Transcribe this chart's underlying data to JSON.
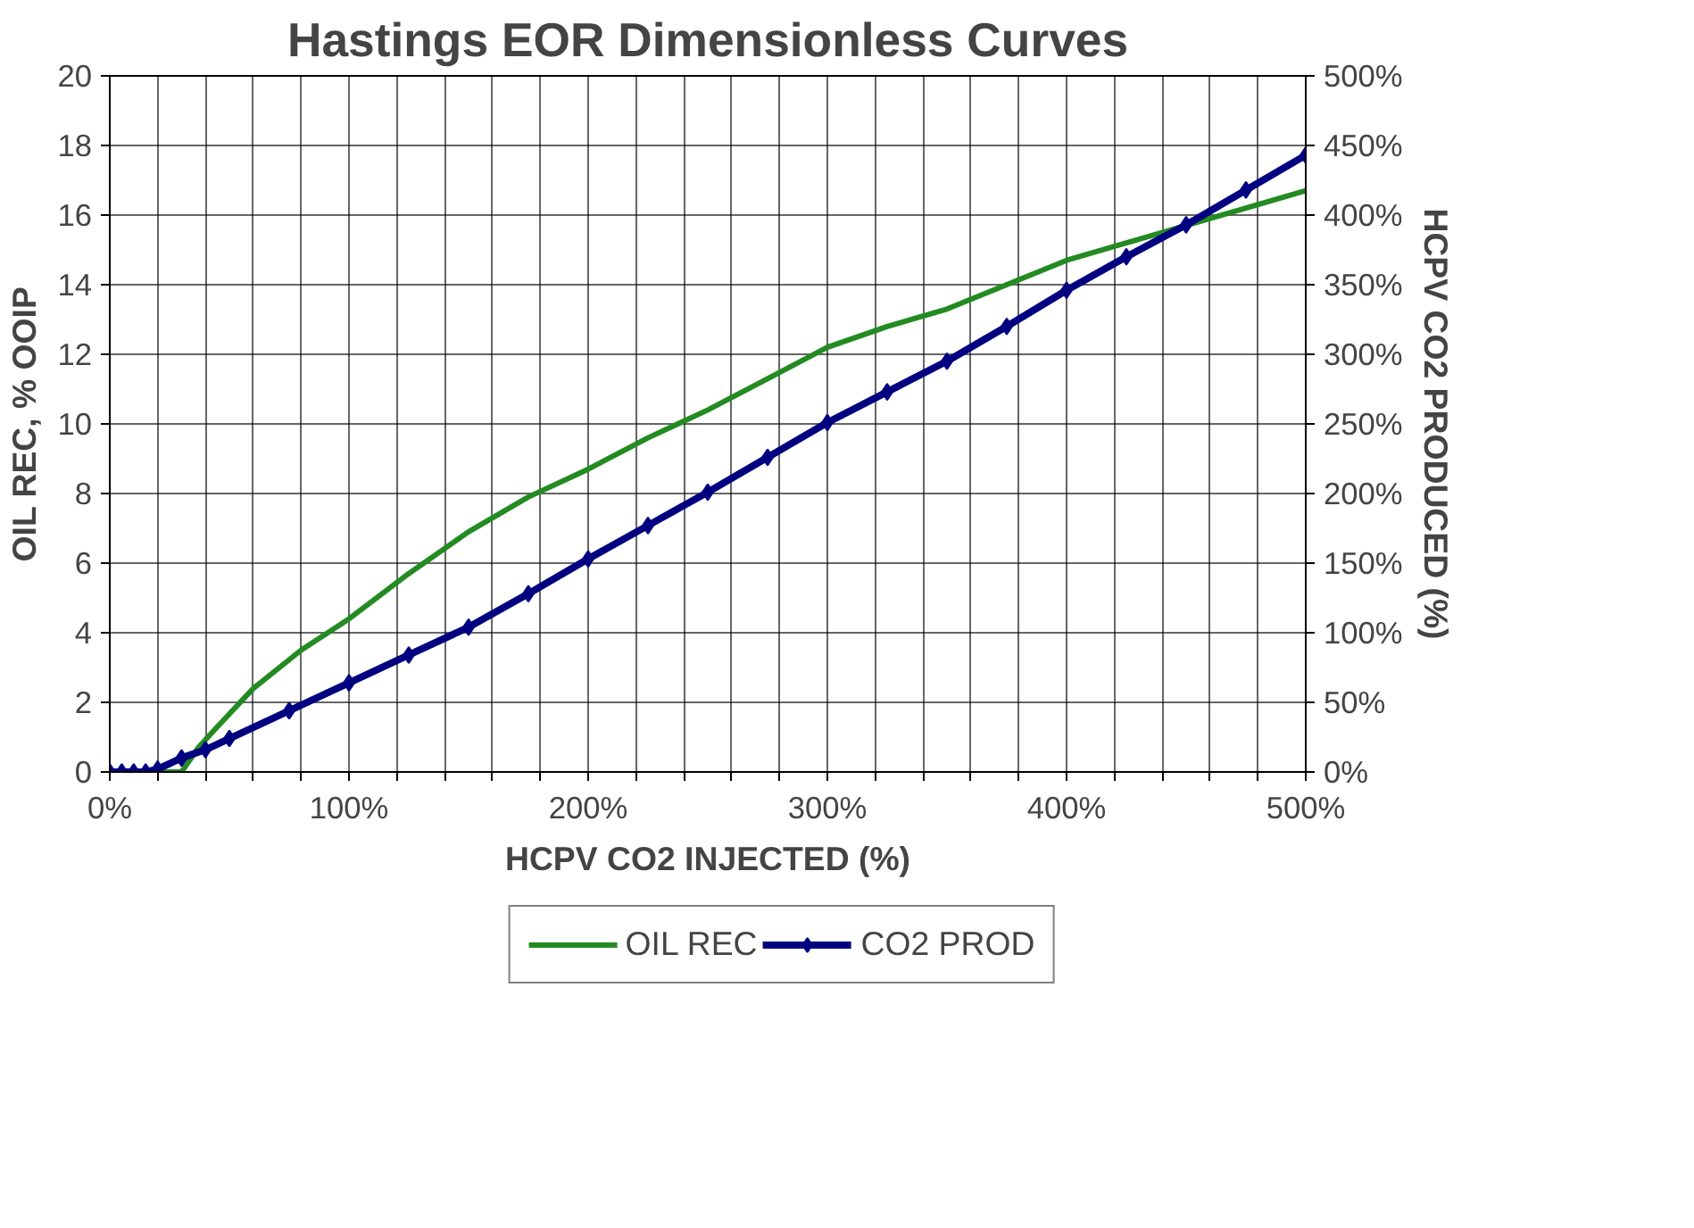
{
  "chart_data": {
    "type": "line",
    "title": "Hastings EOR Dimensionless Curves",
    "xlabel": "HCPV CO2 INJECTED (%)",
    "ylabel": "OIL REC, % OOIP",
    "y2label": "HCPV CO2 PRODUCED (%)",
    "series": [
      {
        "name": "OIL REC",
        "color": "#238b21",
        "marker": "none",
        "x": [
          0,
          10,
          20,
          30,
          37,
          45,
          60,
          80,
          100,
          125,
          150,
          175,
          200,
          225,
          250,
          275,
          300,
          325,
          350,
          375,
          400,
          425,
          450,
          475,
          500
        ],
        "values": [
          0,
          0,
          0,
          0,
          0.7,
          1.3,
          2.4,
          3.5,
          4.4,
          5.7,
          6.9,
          7.9,
          8.7,
          9.6,
          10.4,
          11.3,
          12.2,
          12.8,
          13.3,
          14.0,
          14.7,
          15.2,
          15.7,
          16.2,
          16.7
        ]
      },
      {
        "name": "CO2 PROD",
        "color": "#000080",
        "marker": "diamond",
        "axis": "y2",
        "x": [
          0,
          5,
          10,
          15,
          20,
          30,
          40,
          50,
          75,
          100,
          125,
          150,
          175,
          200,
          225,
          250,
          275,
          300,
          325,
          350,
          375,
          400,
          425,
          450,
          475,
          500
        ],
        "values": [
          0,
          0,
          0,
          0,
          2,
          10,
          16,
          24,
          44,
          64,
          84,
          104,
          128,
          153,
          177,
          201,
          226,
          251,
          273,
          295,
          320,
          346,
          370,
          393,
          418,
          443
        ]
      }
    ],
    "xlim": [
      0,
      500
    ],
    "xticks": [
      {
        "value": 0,
        "label": "0%"
      },
      {
        "value": 20,
        "label": null
      },
      {
        "value": 40,
        "label": null
      },
      {
        "value": 60,
        "label": null
      },
      {
        "value": 80,
        "label": null
      },
      {
        "value": 100,
        "label": "100%"
      },
      {
        "value": 120,
        "label": null
      },
      {
        "value": 140,
        "label": null
      },
      {
        "value": 160,
        "label": null
      },
      {
        "value": 180,
        "label": null
      },
      {
        "value": 200,
        "label": "200%"
      },
      {
        "value": 220,
        "label": null
      },
      {
        "value": 240,
        "label": null
      },
      {
        "value": 260,
        "label": null
      },
      {
        "value": 280,
        "label": null
      },
      {
        "value": 300,
        "label": "300%"
      },
      {
        "value": 320,
        "label": null
      },
      {
        "value": 340,
        "label": null
      },
      {
        "value": 360,
        "label": null
      },
      {
        "value": 380,
        "label": null
      },
      {
        "value": 400,
        "label": "400%"
      },
      {
        "value": 420,
        "label": null
      },
      {
        "value": 440,
        "label": null
      },
      {
        "value": 460,
        "label": null
      },
      {
        "value": 480,
        "label": null
      },
      {
        "value": 500,
        "label": "500%"
      }
    ],
    "ylim": [
      0,
      20
    ],
    "yticks": [
      0,
      2,
      4,
      6,
      8,
      10,
      12,
      14,
      16,
      18,
      20
    ],
    "y2lim": [
      0,
      500
    ],
    "y2ticks": [
      {
        "value": 0,
        "label": "0%"
      },
      {
        "value": 50,
        "label": "50%"
      },
      {
        "value": 100,
        "label": "100%"
      },
      {
        "value": 150,
        "label": "150%"
      },
      {
        "value": 200,
        "label": "200%"
      },
      {
        "value": 250,
        "label": "250%"
      },
      {
        "value": 300,
        "label": "300%"
      },
      {
        "value": 350,
        "label": "350%"
      },
      {
        "value": 400,
        "label": "400%"
      },
      {
        "value": 450,
        "label": "450%"
      },
      {
        "value": 500,
        "label": "500%"
      }
    ],
    "grid": true,
    "legend": "bottom"
  }
}
